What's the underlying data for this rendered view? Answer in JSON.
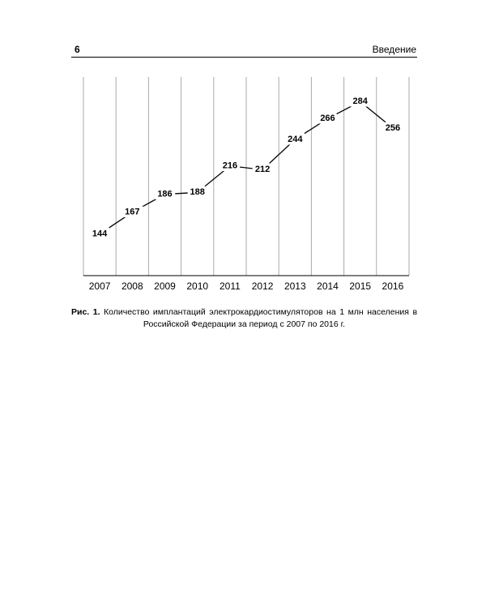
{
  "header": {
    "page_number": "6",
    "title": "Введение"
  },
  "chart_data": {
    "type": "line",
    "categories": [
      "2007",
      "2008",
      "2009",
      "2010",
      "2011",
      "2012",
      "2013",
      "2014",
      "2015",
      "2016"
    ],
    "values": [
      144,
      167,
      186,
      188,
      216,
      212,
      244,
      266,
      284,
      256
    ],
    "color": "#000000",
    "ylim": [
      100,
      310
    ],
    "grid": true
  },
  "caption": {
    "label": "Рис. 1.",
    "text": "Количество имплантаций электрокардиостимуляторов на 1 млн населения в Российской Федерации за период с 2007 по 2016 г."
  }
}
